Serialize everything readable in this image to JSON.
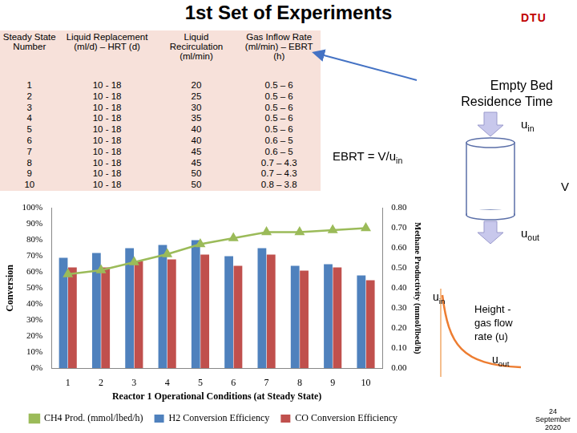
{
  "chart_data": {
    "type": "bar",
    "x_label": "Reactor 1 Operational Conditions (at Steady State)",
    "y_label": "Conversion",
    "y2_label": "Methane Productivity (mmol/lbed/h)",
    "categories": [
      1,
      2,
      3,
      4,
      5,
      6,
      7,
      8,
      9,
      10
    ],
    "series": [
      {
        "name": "H2 Conversion Efficiency",
        "color": "#4f81bd",
        "values": [
          69,
          72,
          75,
          77,
          80,
          70,
          75,
          64,
          65,
          58
        ]
      },
      {
        "name": "CO Conversion Efficiency",
        "color": "#c0504d",
        "values": [
          63,
          63,
          67,
          68,
          71,
          64,
          71,
          61,
          63,
          55
        ]
      },
      {
        "name": "CH4 Prod. (mmol/lbed/h)",
        "color": "#9bbb59",
        "type": "line",
        "axis": "y2",
        "marker": "triangle",
        "values": [
          0.47,
          0.49,
          0.53,
          0.57,
          0.62,
          0.65,
          0.68,
          0.68,
          0.69,
          0.7
        ]
      }
    ],
    "ylim": [
      0,
      100
    ],
    "yticks": [
      {
        "value": 0,
        "label": "0%"
      },
      {
        "value": 10,
        "label": "10%"
      },
      {
        "value": 20,
        "label": "20%"
      },
      {
        "value": 30,
        "label": "30%"
      },
      {
        "value": 40,
        "label": "40%"
      },
      {
        "value": 50,
        "label": "50%"
      },
      {
        "value": 60,
        "label": "60%"
      },
      {
        "value": 70,
        "label": "70%"
      },
      {
        "value": 80,
        "label": "80%"
      },
      {
        "value": 90,
        "label": "90%"
      },
      {
        "value": 100,
        "label": "100%"
      }
    ],
    "y2lim": [
      0,
      0.8
    ],
    "y2ticks": [
      {
        "value": 0,
        "label": "0.00"
      },
      {
        "value": 0.1,
        "label": "0.10"
      },
      {
        "value": 0.2,
        "label": "0.20"
      },
      {
        "value": 0.3,
        "label": "0.30"
      },
      {
        "value": 0.4,
        "label": "0.40"
      },
      {
        "value": 0.5,
        "label": "0.50"
      },
      {
        "value": 0.6,
        "label": "0.60"
      },
      {
        "value": 0.7,
        "label": "0.70"
      },
      {
        "value": 0.8,
        "label": "0.80"
      }
    ],
    "grid": false,
    "legend": "bottom"
  },
  "slide": {
    "title": "1st Set of Experiments",
    "logo": "DTU",
    "table": {
      "header": [
        "Steady State Number",
        "Liquid Replacement (ml/d) – HRT (d)",
        "Liquid Recirculation (ml/min)",
        "Gas Inflow Rate (ml/min) – EBRT (h)"
      ],
      "rows": [
        [
          "1",
          "10 - 18",
          "20",
          "0.5 – 6"
        ],
        [
          "2",
          "10 - 18",
          "25",
          "0.5 – 6"
        ],
        [
          "3",
          "10 - 18",
          "30",
          "0.5 – 6"
        ],
        [
          "4",
          "10 - 18",
          "35",
          "0.5 – 6"
        ],
        [
          "5",
          "10 - 18",
          "40",
          "0.5 – 6"
        ],
        [
          "6",
          "10 - 18",
          "40",
          "0.6 – 5"
        ],
        [
          "7",
          "10 - 18",
          "45",
          "0.6 – 5"
        ],
        [
          "8",
          "10 - 18",
          "45",
          "0.7 – 4.3"
        ],
        [
          "9",
          "10 - 18",
          "50",
          "0.7 – 4.3"
        ],
        [
          "10",
          "10 - 18",
          "50",
          "0.8 – 3.8"
        ]
      ]
    },
    "annotations": {
      "ebrt_name": "Empty Bed Residence Time",
      "ebrt_formula": {
        "text": "EBRT = V/u",
        "sub": "in"
      },
      "u_in": {
        "text": "u",
        "sub": "in"
      },
      "volume": "V",
      "u_out": {
        "text": "u",
        "sub": "out"
      },
      "profile_u_in": {
        "text": "u",
        "sub": "in"
      },
      "profile_label": [
        "Height -",
        "gas flow",
        "rate (u)"
      ],
      "profile_u_out": {
        "text": "u",
        "sub": "out"
      }
    },
    "date": [
      "24",
      "September",
      "2020"
    ]
  }
}
